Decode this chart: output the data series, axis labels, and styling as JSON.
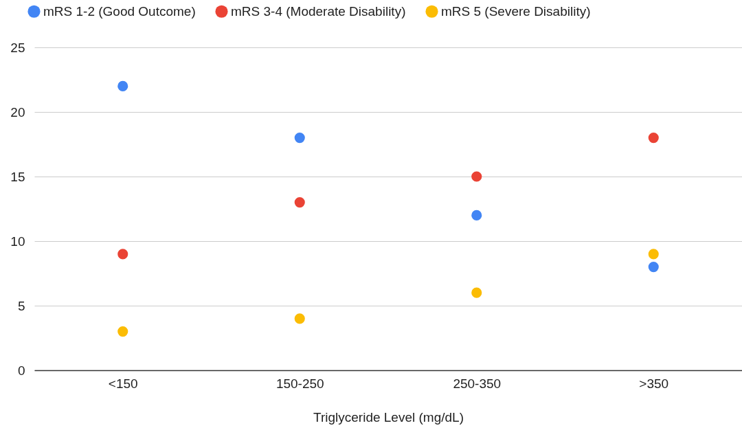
{
  "chart_data": {
    "type": "scatter",
    "xlabel": "Triglyceride Level (mg/dL)",
    "categories": [
      "<150",
      "150-250",
      "250-350",
      ">350"
    ],
    "series": [
      {
        "name": "mRS 1-2 (Good Outcome)",
        "color": "#4285f4",
        "values": [
          22,
          18,
          12,
          8
        ]
      },
      {
        "name": "mRS 3-4 (Moderate Disability)",
        "color": "#ea4335",
        "values": [
          9,
          13,
          15,
          18
        ]
      },
      {
        "name": "mRS 5 (Severe Disability)",
        "color": "#fbbc04",
        "values": [
          3,
          4,
          6,
          9
        ]
      }
    ],
    "ylim": [
      0,
      25
    ],
    "yticks": [
      0,
      5,
      10,
      15,
      20,
      25
    ],
    "grid": "y",
    "legend": "top",
    "marker": "circle"
  }
}
